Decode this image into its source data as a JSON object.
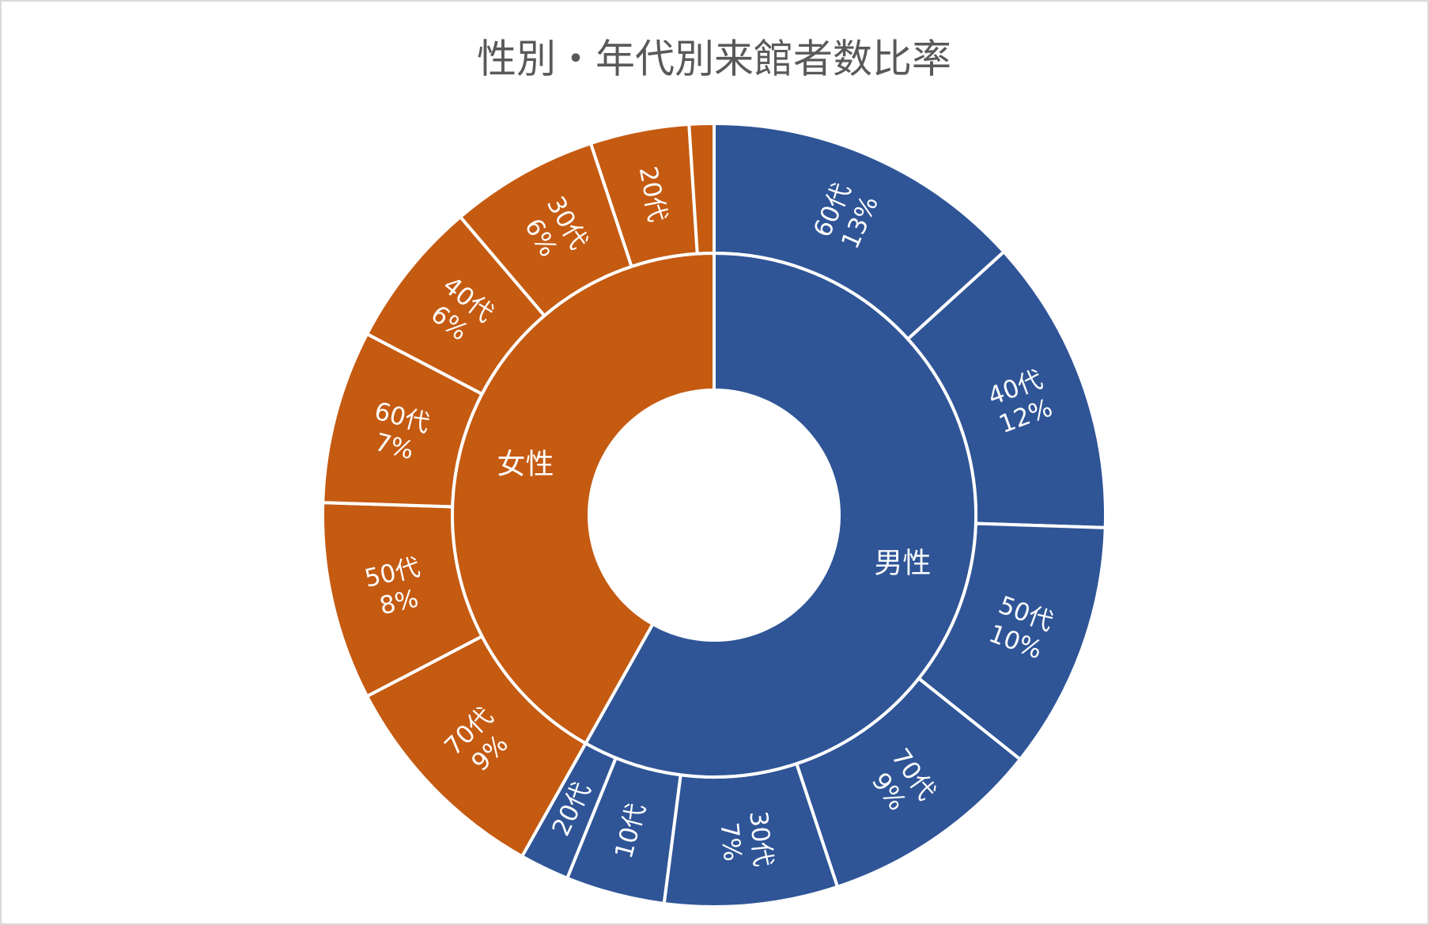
{
  "chart_data": {
    "type": "sunburst",
    "title": "性別・年代別来館者数比率",
    "groups": [
      {
        "name": "男性",
        "color": "#2F5597",
        "categories": [
          "60代",
          "40代",
          "50代",
          "70代",
          "30代",
          "10代",
          "20代"
        ],
        "values": [
          13,
          12,
          10,
          9,
          7,
          4,
          2
        ],
        "value_labels": [
          "13%",
          "12%",
          "10%",
          "9%",
          "7%",
          null,
          null
        ]
      },
      {
        "name": "女性",
        "color": "#C55A11",
        "categories": [
          "70代",
          "50代",
          "60代",
          "40代",
          "30代",
          "20代",
          null
        ],
        "values": [
          9,
          8,
          7,
          6,
          6,
          4,
          1
        ],
        "value_labels": [
          "9%",
          "8%",
          "7%",
          "6%",
          "6%",
          null,
          null
        ]
      }
    ]
  }
}
